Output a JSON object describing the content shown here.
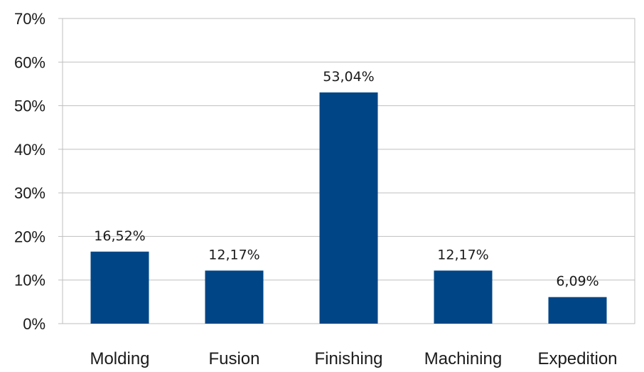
{
  "chart_data": {
    "type": "bar",
    "title": "",
    "xlabel": "",
    "ylabel": "",
    "categories": [
      "Molding",
      "Fusion",
      "Finishing",
      "Machining",
      "Expedition"
    ],
    "values": [
      16.52,
      12.17,
      53.04,
      12.17,
      6.09
    ],
    "value_labels": [
      "16,52%",
      "12,17%",
      "53,04%",
      "12,17%",
      "6,09%"
    ],
    "ylim": [
      0,
      70
    ],
    "y_ticks": [
      0,
      10,
      20,
      30,
      40,
      50,
      60,
      70
    ],
    "y_tick_labels": [
      "0%",
      "10%",
      "20%",
      "30%",
      "40%",
      "50%",
      "60%",
      "70%"
    ],
    "grid": true,
    "legend": "none",
    "bar_color": "#004586"
  }
}
